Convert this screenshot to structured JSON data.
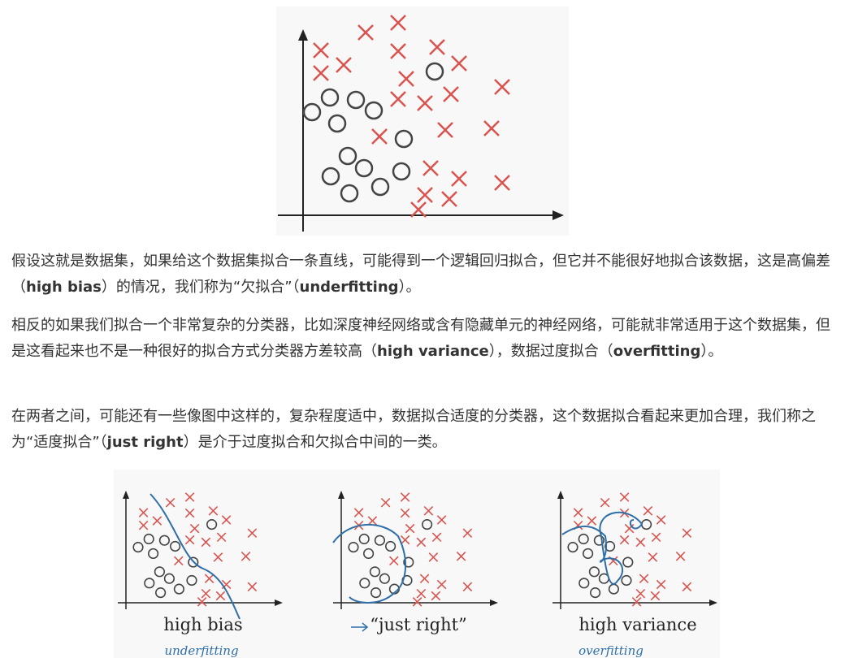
{
  "paragraphs": [
    [
      {
        "text": "假设这就是数据集，如果给这个数据集拟合一条直线，可能得到一个逻辑回归拟合，但它并不能很好地拟合该数据，这是高偏差（"
      },
      {
        "text": "high bias",
        "bold": true
      },
      {
        "text": "）的情况，我们称为“欠拟合”（"
      },
      {
        "text": "underfitting",
        "bold": true
      },
      {
        "text": "）。"
      }
    ],
    [
      {
        "text": "相反的如果我们拟合一个非常复杂的分类器，比如深度神经网络或含有隐藏单元的神经网络，可能就非常适用于这个数据集，但是这看起来也不是一种很好的拟合方式分类器方差较高（"
      },
      {
        "text": "high variance",
        "bold": true
      },
      {
        "text": "），数据过度拟合（"
      },
      {
        "text": "overfitting",
        "bold": true
      },
      {
        "text": "）。"
      }
    ],
    [
      {
        "text": "在两者之间，可能还有一些像图中这样的，复杂程度适中，数据拟合适度的分类器，这个数据拟合看起来更加合理，我们称之为“适度拟合”（"
      },
      {
        "text": "just right",
        "bold": true
      },
      {
        "text": "）是介于过度拟合和欠拟合中间的一类。"
      }
    ]
  ],
  "figure2": {
    "captions": [
      "high bias",
      "“just right”",
      "high variance"
    ],
    "notes": [
      "underfitting",
      "overfitting"
    ]
  }
}
